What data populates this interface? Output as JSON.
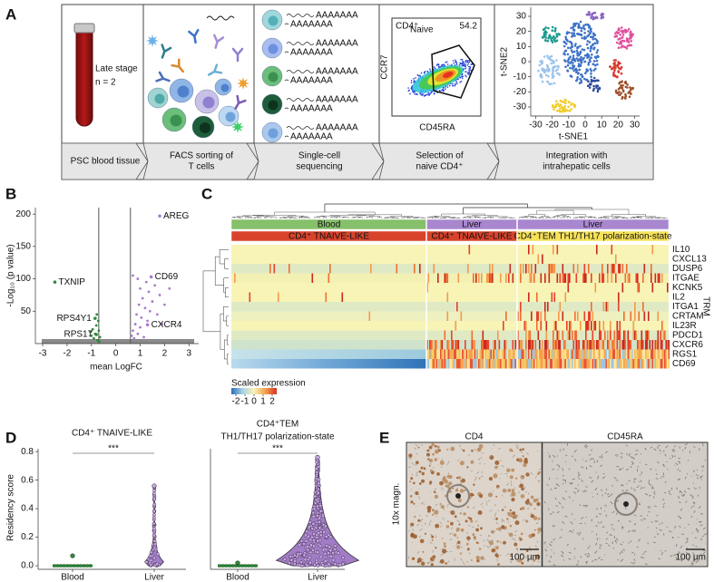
{
  "panels": {
    "a": "A",
    "b": "B",
    "c": "C",
    "d": "D",
    "e": "E"
  },
  "workflow": {
    "tube": [
      "Late stage",
      "n = 2"
    ],
    "polya": [
      "AAAAAAA",
      "AAAAAAA",
      "AAAAAAA",
      "AAAAAAA",
      "AAAAAAA",
      "AAAAAAA",
      "AAAAAAA",
      "AAAAAAA",
      "AAAAAAA",
      "AAAAAAA"
    ],
    "facs": {
      "gate": "CD4⁺",
      "gate_sub": "Naive",
      "percent": 54.2,
      "y_label": "CCR7",
      "x_label": "CD45RA"
    },
    "tsne": {
      "y_label": "t-SNE2",
      "x_label": "t-SNE1",
      "xlim": [
        -33,
        33
      ],
      "ylim": [
        -36,
        36
      ],
      "xticks": [
        -30,
        -20,
        -10,
        0,
        10,
        20,
        30
      ],
      "yticks": [
        30,
        20,
        10,
        0,
        -10,
        -20,
        -30
      ]
    },
    "steps": [
      [
        "PSC blood tissue"
      ],
      [
        "FACS sorting of",
        "T cells"
      ],
      [
        "Single-cell",
        "sequencing"
      ],
      [
        "Selection of",
        "naive CD4⁺"
      ],
      [
        "Integration with",
        "intrahepatic cells"
      ]
    ]
  },
  "volcano": {
    "y_label": "-Log₁₀ (p value)",
    "x_label": "mean LogFC",
    "xlim": [
      -3.3,
      3.4
    ],
    "ylim": [
      0,
      210
    ],
    "xticks": [
      -3,
      -2,
      -1,
      0,
      1,
      2,
      3
    ],
    "yticks": [
      50,
      100,
      150,
      200
    ],
    "thresholds": [
      -0.7,
      0.6
    ],
    "genes": [
      {
        "name": "AREG",
        "x": 1.8,
        "y": 197
      },
      {
        "name": "CD69",
        "x": 1.45,
        "y": 103
      },
      {
        "name": "CXCR4",
        "x": 1.3,
        "y": 29
      },
      {
        "name": "TXNIP",
        "x": -2.5,
        "y": 95
      },
      {
        "name": "RPS4Y1",
        "x": -0.85,
        "y": 39
      },
      {
        "name": "RPS17",
        "x": -0.8,
        "y": 14
      }
    ],
    "up": {
      "color": "#a97ccc",
      "points": [
        [
          0.65,
          12
        ],
        [
          0.7,
          20
        ],
        [
          0.75,
          8
        ],
        [
          0.8,
          30
        ],
        [
          0.85,
          45
        ],
        [
          0.9,
          15
        ],
        [
          0.95,
          60
        ],
        [
          1.0,
          25
        ],
        [
          1.0,
          85
        ],
        [
          1.05,
          40
        ],
        [
          1.1,
          70
        ],
        [
          1.15,
          10
        ],
        [
          1.2,
          55
        ],
        [
          1.25,
          95
        ],
        [
          1.3,
          35
        ],
        [
          1.35,
          80
        ],
        [
          1.4,
          50
        ],
        [
          1.5,
          65
        ],
        [
          1.6,
          90
        ],
        [
          1.7,
          45
        ],
        [
          1.8,
          75
        ],
        [
          1.9,
          30
        ],
        [
          2.0,
          60
        ],
        [
          2.2,
          85
        ],
        [
          0.7,
          105
        ],
        [
          0.9,
          100
        ]
      ]
    },
    "down": {
      "color": "#2e8b3a",
      "points": [
        [
          -0.65,
          10
        ],
        [
          -0.7,
          20
        ],
        [
          -0.75,
          5
        ],
        [
          -0.8,
          28
        ],
        [
          -0.85,
          15
        ],
        [
          -0.9,
          8
        ],
        [
          -0.95,
          22
        ],
        [
          -1.0,
          12
        ],
        [
          -0.72,
          35
        ],
        [
          -0.68,
          3
        ],
        [
          -1.05,
          18
        ],
        [
          -0.78,
          45
        ]
      ]
    }
  },
  "heatmap": {
    "columns": [
      "Blood",
      "Liver",
      "Liver"
    ],
    "column_colors": [
      "#86c06b",
      "#a987cf",
      "#a987cf"
    ],
    "groups": [
      "CD4⁺ TNAIVE-LIKE",
      "CD4⁺ TNAIVE-LIKE",
      "CD4⁺TEM TH1/TH17 polarization-state"
    ],
    "group_colors": [
      "#d8432c",
      "#d8432c",
      "#f6e25a"
    ],
    "genes": [
      "IL10",
      "CXCL13",
      "DUSP6",
      "ITGAE",
      "KCNK5",
      "IL2",
      "ITGA1",
      "CRTAM",
      "IL23R",
      "PDCD1",
      "CXCR6",
      "RGS1",
      "CD69"
    ],
    "module": "TRM",
    "legend": {
      "title": "Scaled expression",
      "lim": [
        -2.5,
        2.5
      ],
      "ticks": [
        -2,
        -1,
        0,
        1,
        2
      ],
      "colors": [
        "#2c6fb7",
        "#a9d3e6",
        "#f7f4b6",
        "#f5a04a",
        "#d7301f"
      ]
    }
  },
  "violin_axis": {
    "y_label": "Residency score",
    "ylim": [
      -0.025,
      0.82
    ],
    "yticks": [
      {
        "value": 0,
        "label": "0.0"
      },
      {
        "value": 0.2,
        "label": "0.2"
      },
      {
        "value": 0.4,
        "label": "0.4"
      },
      {
        "value": 0.6,
        "label": "0.6"
      },
      {
        "value": 0.8,
        "label": "0.8"
      }
    ]
  },
  "violins": [
    {
      "title": [
        "CD4⁺ TNAIVE-LIKE"
      ],
      "categories": [
        "Blood",
        "Liver"
      ],
      "colors": [
        "#2e8b3a",
        "#a27cc6"
      ],
      "max": [
        0.07,
        0.56
      ],
      "significance": "***"
    },
    {
      "title": [
        "CD4⁺TEM",
        "TH1/TH17 polarization-state"
      ],
      "categories": [
        "Blood",
        "Liver"
      ],
      "colors": [
        "#2e8b3a",
        "#a27cc6"
      ],
      "max": [
        0.02,
        0.76
      ],
      "significance": "***"
    }
  ],
  "histology": {
    "stains": [
      "CD4",
      "CD45RA"
    ],
    "magnification": "10x magn.",
    "scale_bar": [
      "100 µm",
      "100 µm"
    ]
  }
}
